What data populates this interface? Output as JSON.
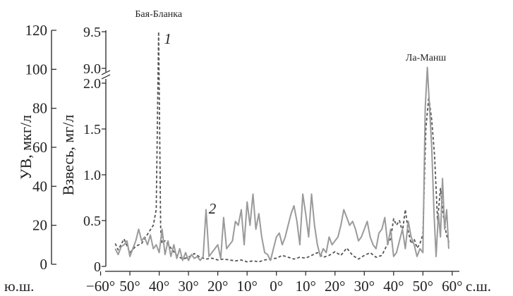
{
  "chart_data": {
    "type": "line",
    "title": "",
    "x": {
      "domain": [
        -57,
        61
      ],
      "tick_values": [
        -60,
        -50,
        -40,
        -30,
        -20,
        -10,
        0,
        10,
        20,
        30,
        40,
        50,
        60
      ],
      "tick_labels": [
        "−60°",
        "50°",
        "40°",
        "30°",
        "20°",
        "10°",
        "0°",
        "10°",
        "20°",
        "30°",
        "40°",
        "50°",
        "60°"
      ],
      "left_label": "ю.ш.",
      "right_label": "с.ш."
    },
    "y_left": {
      "label": "УВ, мкг/л",
      "ylim": [
        0,
        120
      ],
      "ticks": [
        0,
        20,
        40,
        60,
        80,
        100,
        120
      ]
    },
    "y_right": {
      "label": "Взвесь, мг/л",
      "break": true,
      "lower_ticks": [
        0,
        0.5,
        1.0,
        1.5,
        2.0
      ],
      "lower_tick_labels": [
        "0",
        "0.5",
        "1.0",
        "1.5",
        "2.0"
      ],
      "upper_ticks": [
        9.0,
        9.5
      ],
      "upper_tick_labels": [
        "9.0",
        "9.5"
      ]
    },
    "annotations": [
      {
        "id": "peak-label-bahia-blanca",
        "text": "Бая-Бланка"
      },
      {
        "id": "peak-label-la-manche",
        "text": "Ла-Манш"
      },
      {
        "id": "series-label-1",
        "text": "1"
      },
      {
        "id": "series-label-2",
        "text": "2"
      }
    ],
    "series": [
      {
        "id": "series-1",
        "style": "dashed",
        "color": "#555555",
        "axis": "y_right",
        "points": [
          [
            -55,
            0.25
          ],
          [
            -54,
            0.18
          ],
          [
            -52,
            0.3
          ],
          [
            -50,
            0.15
          ],
          [
            -48,
            0.22
          ],
          [
            -46,
            0.25
          ],
          [
            -44,
            0.35
          ],
          [
            -42,
            0.45
          ],
          [
            -41,
            0.62
          ],
          [
            -40.2,
            9.5
          ],
          [
            -39.5,
            0.4
          ],
          [
            -39,
            0.25
          ],
          [
            -38,
            0.28
          ],
          [
            -36,
            0.2
          ],
          [
            -34,
            0.12
          ],
          [
            -32,
            0.08
          ],
          [
            -30,
            0.1
          ],
          [
            -28,
            0.14
          ],
          [
            -26,
            0.1
          ],
          [
            -24,
            0.08
          ],
          [
            -22,
            0.09
          ],
          [
            -20,
            0.07
          ],
          [
            -18,
            0.08
          ],
          [
            -16,
            0.07
          ],
          [
            -14,
            0.06
          ],
          [
            -12,
            0.07
          ],
          [
            -10,
            0.05
          ],
          [
            -8,
            0.06
          ],
          [
            -6,
            0.05
          ],
          [
            -4,
            0.07
          ],
          [
            -2,
            0.08
          ],
          [
            0,
            0.09
          ],
          [
            2,
            0.12
          ],
          [
            4,
            0.1
          ],
          [
            6,
            0.08
          ],
          [
            8,
            0.1
          ],
          [
            10,
            0.09
          ],
          [
            12,
            0.12
          ],
          [
            14,
            0.15
          ],
          [
            16,
            0.1
          ],
          [
            18,
            0.12
          ],
          [
            20,
            0.16
          ],
          [
            22,
            0.12
          ],
          [
            24,
            0.2
          ],
          [
            26,
            0.12
          ],
          [
            28,
            0.08
          ],
          [
            30,
            0.12
          ],
          [
            32,
            0.15
          ],
          [
            34,
            0.1
          ],
          [
            36,
            0.12
          ],
          [
            38,
            0.25
          ],
          [
            39,
            0.3
          ],
          [
            40,
            0.52
          ],
          [
            41,
            0.45
          ],
          [
            42,
            0.5
          ],
          [
            43,
            0.38
          ],
          [
            44,
            0.62
          ],
          [
            45,
            0.38
          ],
          [
            46,
            0.25
          ],
          [
            47,
            0.3
          ],
          [
            48,
            0.2
          ],
          [
            49,
            0.25
          ],
          [
            50,
            0.35
          ],
          [
            51,
            1.5
          ],
          [
            52,
            1.85
          ],
          [
            53,
            1.6
          ],
          [
            54,
            1.2
          ],
          [
            55,
            0.5
          ],
          [
            56,
            0.85
          ],
          [
            57,
            0.55
          ],
          [
            58,
            0.35
          ],
          [
            59,
            0.25
          ]
        ]
      },
      {
        "id": "series-2",
        "style": "solid",
        "color": "#9a9a9a",
        "axis": "y_left",
        "points": [
          [
            -55,
            8
          ],
          [
            -54,
            5
          ],
          [
            -53,
            9
          ],
          [
            -52,
            10
          ],
          [
            -51,
            12
          ],
          [
            -50,
            4
          ],
          [
            -49,
            8
          ],
          [
            -48,
            12
          ],
          [
            -47,
            18
          ],
          [
            -46,
            12
          ],
          [
            -45,
            14
          ],
          [
            -44,
            10
          ],
          [
            -43,
            15
          ],
          [
            -42,
            8
          ],
          [
            -41,
            10
          ],
          [
            -40,
            6
          ],
          [
            -39,
            18
          ],
          [
            -38,
            5
          ],
          [
            -37,
            12
          ],
          [
            -36,
            4
          ],
          [
            -35,
            10
          ],
          [
            -34,
            3
          ],
          [
            -33,
            8
          ],
          [
            -32,
            2
          ],
          [
            -31,
            6
          ],
          [
            -30,
            2
          ],
          [
            -29,
            5
          ],
          [
            -28,
            3
          ],
          [
            -27,
            4
          ],
          [
            -26,
            2
          ],
          [
            -25,
            4
          ],
          [
            -24,
            28
          ],
          [
            -23,
            4
          ],
          [
            -22,
            6
          ],
          [
            -21,
            8
          ],
          [
            -20,
            10
          ],
          [
            -19,
            3
          ],
          [
            -18,
            24
          ],
          [
            -17,
            8
          ],
          [
            -16,
            10
          ],
          [
            -15,
            12
          ],
          [
            -14,
            22
          ],
          [
            -13,
            20
          ],
          [
            -12,
            28
          ],
          [
            -11,
            10
          ],
          [
            -10,
            32
          ],
          [
            -9,
            20
          ],
          [
            -8,
            36
          ],
          [
            -7,
            18
          ],
          [
            -6,
            26
          ],
          [
            -5,
            14
          ],
          [
            -4,
            6
          ],
          [
            -3,
            5
          ],
          [
            -2,
            2
          ],
          [
            -1,
            8
          ],
          [
            0,
            14
          ],
          [
            1,
            16
          ],
          [
            2,
            10
          ],
          [
            3,
            14
          ],
          [
            4,
            20
          ],
          [
            5,
            26
          ],
          [
            6,
            30
          ],
          [
            7,
            22
          ],
          [
            8,
            10
          ],
          [
            9,
            36
          ],
          [
            10,
            26
          ],
          [
            11,
            14
          ],
          [
            12,
            36
          ],
          [
            13,
            20
          ],
          [
            14,
            10
          ],
          [
            15,
            4
          ],
          [
            16,
            8
          ],
          [
            17,
            6
          ],
          [
            18,
            14
          ],
          [
            19,
            10
          ],
          [
            20,
            12
          ],
          [
            21,
            14
          ],
          [
            22,
            20
          ],
          [
            23,
            28
          ],
          [
            24,
            24
          ],
          [
            25,
            20
          ],
          [
            26,
            22
          ],
          [
            27,
            18
          ],
          [
            28,
            12
          ],
          [
            29,
            14
          ],
          [
            30,
            18
          ],
          [
            31,
            22
          ],
          [
            32,
            14
          ],
          [
            33,
            10
          ],
          [
            34,
            8
          ],
          [
            35,
            16
          ],
          [
            36,
            18
          ],
          [
            37,
            24
          ],
          [
            38,
            10
          ],
          [
            39,
            18
          ],
          [
            40,
            4
          ],
          [
            41,
            6
          ],
          [
            42,
            12
          ],
          [
            43,
            18
          ],
          [
            44,
            8
          ],
          [
            45,
            22
          ],
          [
            46,
            14
          ],
          [
            47,
            10
          ],
          [
            48,
            4
          ],
          [
            49,
            8
          ],
          [
            50,
            6
          ],
          [
            50.8,
            80
          ],
          [
            51.5,
            101
          ],
          [
            52.2,
            82
          ],
          [
            53,
            60
          ],
          [
            53.8,
            26
          ],
          [
            54.5,
            4
          ],
          [
            55.3,
            26
          ],
          [
            56,
            14
          ],
          [
            56.7,
            44
          ],
          [
            57.4,
            18
          ],
          [
            58.1,
            28
          ],
          [
            58.8,
            8
          ]
        ]
      }
    ]
  }
}
